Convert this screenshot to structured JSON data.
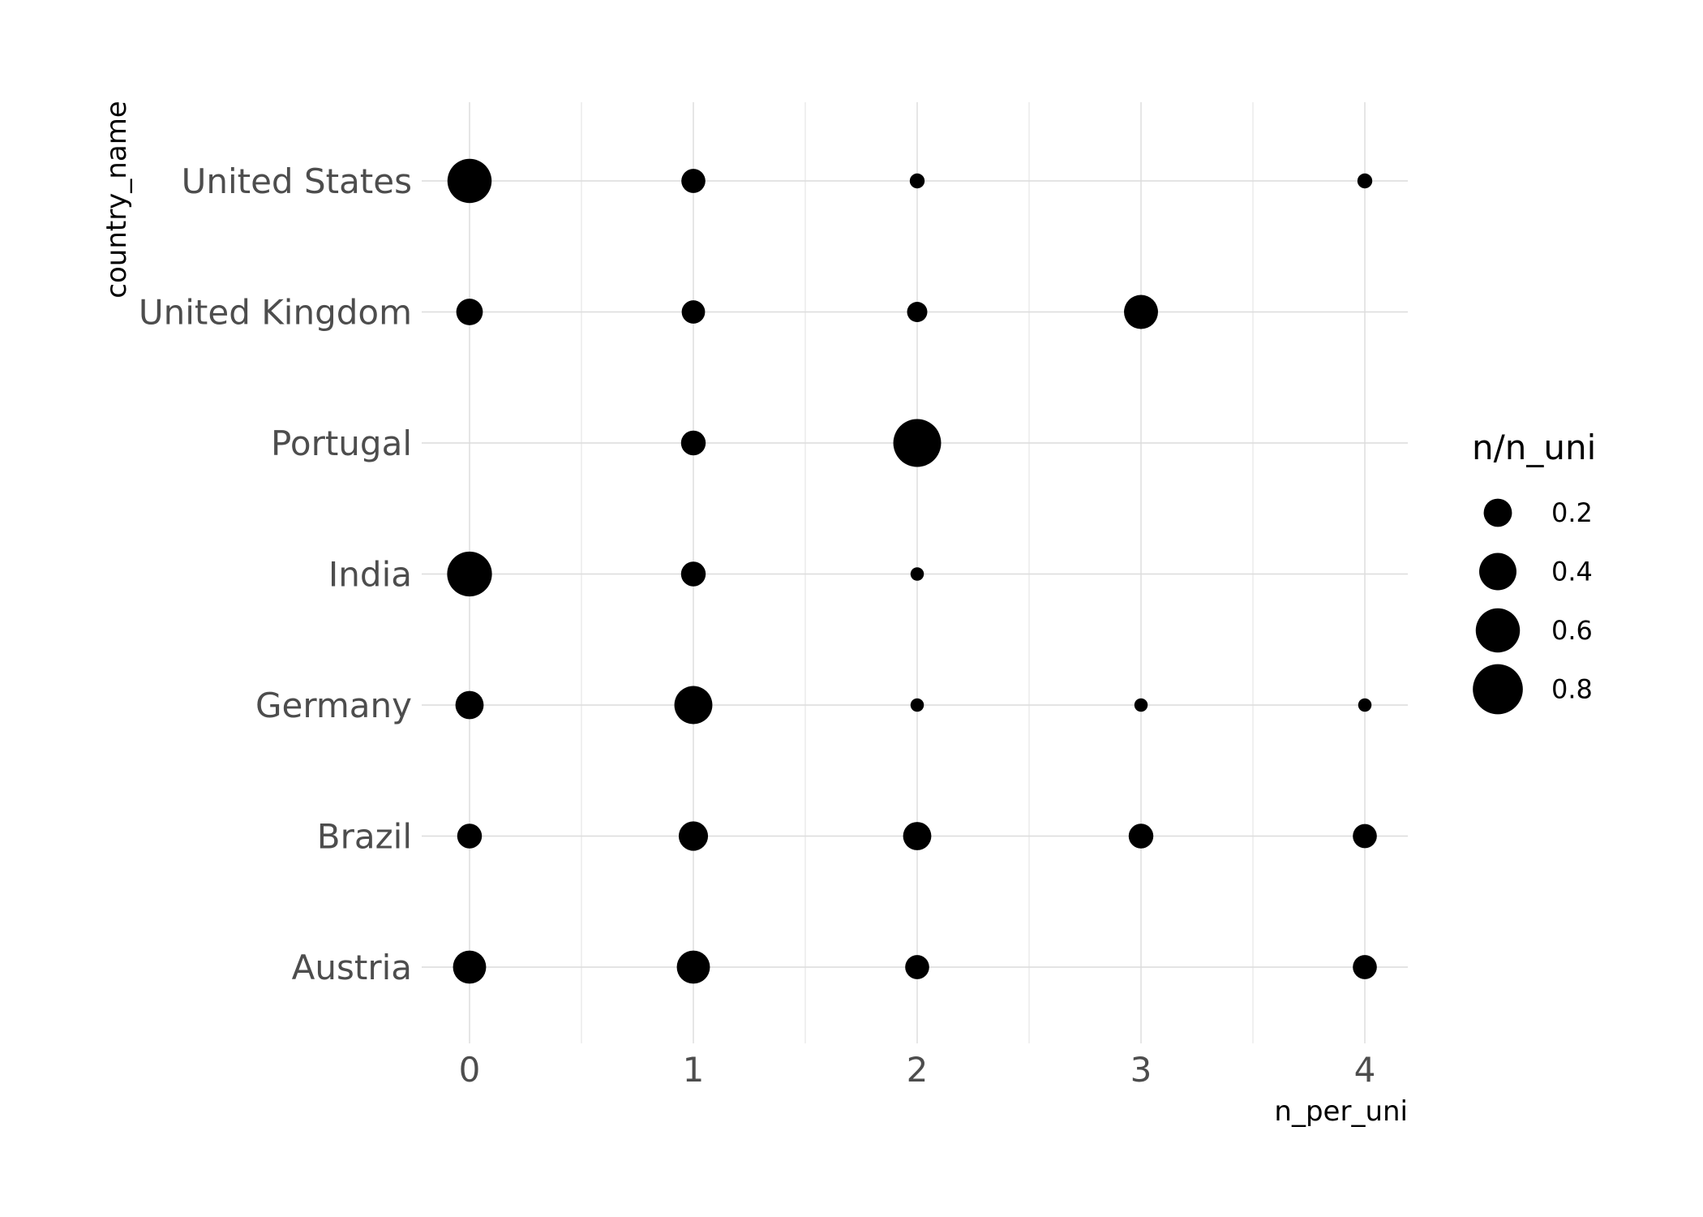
{
  "chart_data": {
    "type": "scatter",
    "xlabel": "n_per_uni",
    "ylabel": "country_name",
    "x_ticks": [
      "0",
      "1",
      "2",
      "3",
      "4"
    ],
    "xlim": [
      -0.25,
      4.2
    ],
    "categories": [
      "United States",
      "United Kingdom",
      "Portugal",
      "India",
      "Germany",
      "Brazil",
      "Austria"
    ],
    "size_variable": "n/n_uni",
    "grid": true,
    "legend_position": "right",
    "legend": {
      "title": "n/n_uni",
      "entries": [
        {
          "label": "0.2",
          "value": 0.2
        },
        {
          "label": "0.4",
          "value": 0.4
        },
        {
          "label": "0.6",
          "value": 0.6
        },
        {
          "label": "0.8",
          "value": 0.8
        }
      ]
    },
    "points": [
      {
        "country": "United States",
        "x": 0,
        "size": 0.6
      },
      {
        "country": "United States",
        "x": 1,
        "size": 0.13
      },
      {
        "country": "United States",
        "x": 2,
        "size": 0.03
      },
      {
        "country": "United States",
        "x": 4,
        "size": 0.03
      },
      {
        "country": "United Kingdom",
        "x": 0,
        "size": 0.17
      },
      {
        "country": "United Kingdom",
        "x": 1,
        "size": 0.12
      },
      {
        "country": "United Kingdom",
        "x": 2,
        "size": 0.08
      },
      {
        "country": "United Kingdom",
        "x": 3,
        "size": 0.32
      },
      {
        "country": "Portugal",
        "x": 1,
        "size": 0.14
      },
      {
        "country": "Portugal",
        "x": 2,
        "size": 0.72
      },
      {
        "country": "India",
        "x": 0,
        "size": 0.62
      },
      {
        "country": "India",
        "x": 1,
        "size": 0.14
      },
      {
        "country": "India",
        "x": 2,
        "size": 0.02
      },
      {
        "country": "Germany",
        "x": 0,
        "size": 0.2
      },
      {
        "country": "Germany",
        "x": 1,
        "size": 0.42
      },
      {
        "country": "Germany",
        "x": 2,
        "size": 0.02
      },
      {
        "country": "Germany",
        "x": 3,
        "size": 0.02
      },
      {
        "country": "Germany",
        "x": 4,
        "size": 0.02
      },
      {
        "country": "Brazil",
        "x": 0,
        "size": 0.14
      },
      {
        "country": "Brazil",
        "x": 1,
        "size": 0.22
      },
      {
        "country": "Brazil",
        "x": 2,
        "size": 0.2
      },
      {
        "country": "Brazil",
        "x": 3,
        "size": 0.14
      },
      {
        "country": "Brazil",
        "x": 4,
        "size": 0.13
      },
      {
        "country": "Austria",
        "x": 0,
        "size": 0.3
      },
      {
        "country": "Austria",
        "x": 1,
        "size": 0.3
      },
      {
        "country": "Austria",
        "x": 2,
        "size": 0.13
      },
      {
        "country": "Austria",
        "x": 4,
        "size": 0.13
      }
    ]
  }
}
